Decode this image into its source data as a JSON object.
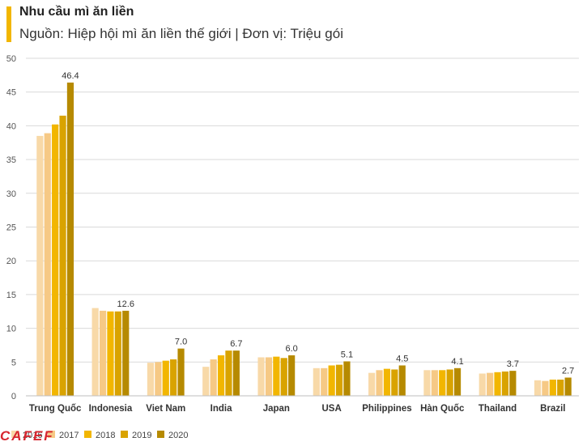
{
  "header": {
    "title": "Nhu cầu mì ăn liền",
    "subtitle": "Nguồn: Hiệp hội mì ăn liền thế giới | Đơn vị: Triệu gói"
  },
  "logo_text": "CAFEF",
  "colors": {
    "accent": "#f2b600",
    "logo": "#d7262f",
    "grid": "#d9d9d9",
    "series": [
      "#f8d9a8",
      "#f6c985",
      "#f2b600",
      "#d9a300",
      "#b68a00"
    ]
  },
  "chart_data": {
    "type": "bar",
    "categories": [
      "Trung Quốc",
      "Indonesia",
      "Viet Nam",
      "India",
      "Japan",
      "USA",
      "Philippines",
      "Hàn Quốc",
      "Thailand",
      "Brazil"
    ],
    "series": [
      {
        "name": "2016",
        "values": [
          38.5,
          13.0,
          4.9,
          4.3,
          5.7,
          4.1,
          3.4,
          3.8,
          3.3,
          2.3
        ]
      },
      {
        "name": "2017",
        "values": [
          38.9,
          12.6,
          5.0,
          5.4,
          5.7,
          4.1,
          3.8,
          3.8,
          3.4,
          2.2
        ]
      },
      {
        "name": "2018",
        "values": [
          40.2,
          12.5,
          5.2,
          6.0,
          5.8,
          4.5,
          4.0,
          3.8,
          3.5,
          2.4
        ]
      },
      {
        "name": "2019",
        "values": [
          41.5,
          12.5,
          5.4,
          6.7,
          5.6,
          4.6,
          3.9,
          3.9,
          3.6,
          2.4
        ]
      },
      {
        "name": "2020",
        "values": [
          46.4,
          12.6,
          7.0,
          6.7,
          6.0,
          5.1,
          4.5,
          4.1,
          3.7,
          2.7
        ]
      }
    ],
    "data_labels": [
      "46.4",
      "12.6",
      "7.0",
      "6.7",
      "6.0",
      "5.1",
      "4.5",
      "4.1",
      "3.7",
      "2.7"
    ],
    "ylim": [
      0,
      50
    ],
    "yticks": [
      0,
      5,
      10,
      15,
      20,
      25,
      30,
      35,
      40,
      45,
      50
    ],
    "grid": true,
    "legend_position": "bottom-left"
  }
}
